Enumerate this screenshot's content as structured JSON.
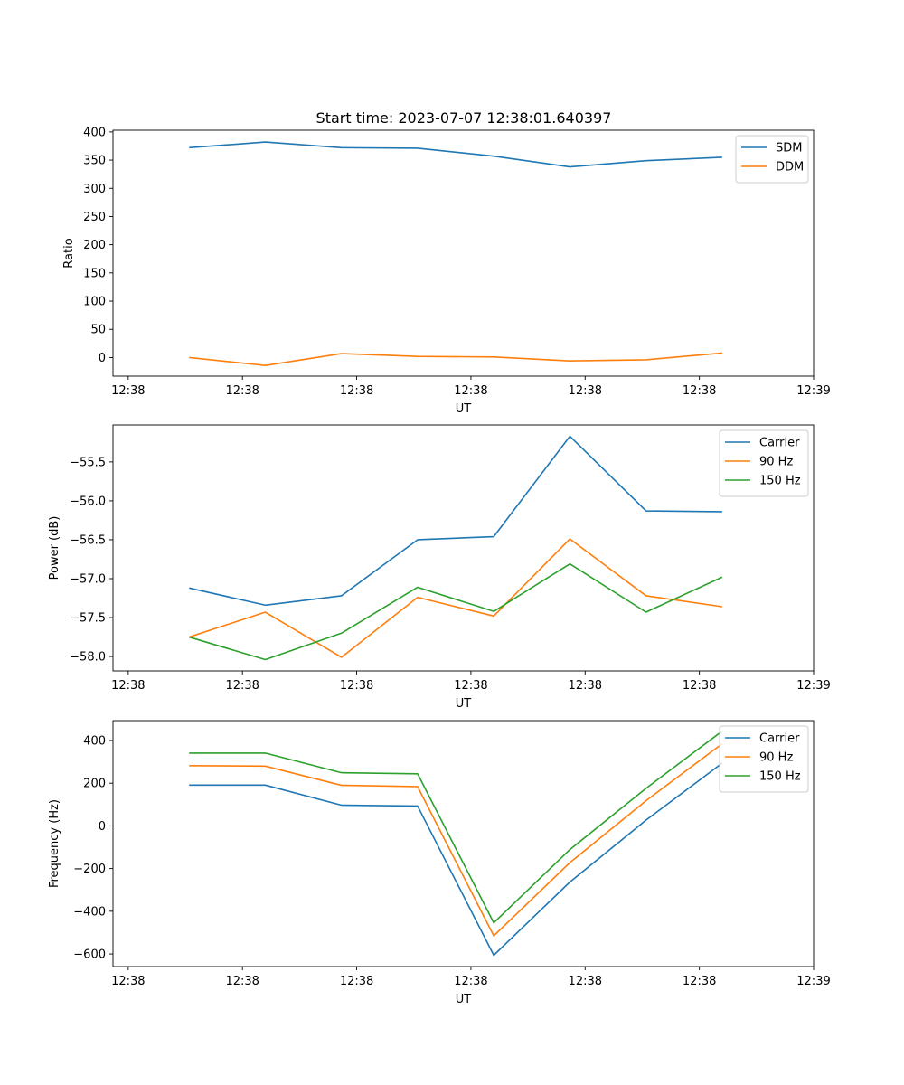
{
  "figure_title": "Start time: 2023-07-07 12:38:01.640397",
  "colors": {
    "blue": "#1f77b4",
    "orange": "#ff7f0e",
    "green": "#2ca02c"
  },
  "chart_data": [
    {
      "type": "line",
      "title": "Start time: 2023-07-07 12:38:01.640397",
      "xlabel": "UT",
      "ylabel": "Ratio",
      "x": [
        1,
        2,
        3,
        4,
        5,
        6,
        7,
        8
      ],
      "xlim": [
        0,
        9.2
      ],
      "xticks": [
        0.2,
        1.7,
        3.2,
        4.7,
        6.2,
        7.7,
        9.2
      ],
      "xtick_labels": [
        "12:38",
        "12:38",
        "12:38",
        "12:38",
        "12:38",
        "12:38",
        "12:39"
      ],
      "ylim": [
        -33,
        403
      ],
      "yticks": [
        0,
        50,
        100,
        150,
        200,
        250,
        300,
        350,
        400
      ],
      "ytick_labels": [
        "0",
        "50",
        "100",
        "150",
        "200",
        "250",
        "300",
        "350",
        "400"
      ],
      "legend_position": "top-right",
      "series": [
        {
          "name": "SDM",
          "color": "#1f77b4",
          "values": [
            372,
            382,
            372,
            371,
            357,
            338,
            349,
            355
          ]
        },
        {
          "name": "DDM",
          "color": "#ff7f0e",
          "values": [
            0,
            -14,
            7,
            2,
            1,
            -6,
            -4,
            8
          ]
        }
      ]
    },
    {
      "type": "line",
      "xlabel": "UT",
      "ylabel": "Power (dB)",
      "x": [
        1,
        2,
        3,
        4,
        5,
        6,
        7,
        8
      ],
      "xlim": [
        0,
        9.2
      ],
      "xticks": [
        0.2,
        1.7,
        3.2,
        4.7,
        6.2,
        7.7,
        9.2
      ],
      "xtick_labels": [
        "12:38",
        "12:38",
        "12:38",
        "12:38",
        "12:38",
        "12:38",
        "12:39"
      ],
      "ylim": [
        -58.185,
        -55.025
      ],
      "yticks": [
        -58.0,
        -57.5,
        -57.0,
        -56.5,
        -56.0,
        -55.5
      ],
      "ytick_labels": [
        "−58.0",
        "−57.5",
        "−57.0",
        "−56.5",
        "−56.0",
        "−55.5"
      ],
      "legend_position": "top-right",
      "series": [
        {
          "name": "Carrier",
          "color": "#1f77b4",
          "values": [
            -57.12,
            -57.34,
            -57.22,
            -56.5,
            -56.46,
            -55.17,
            -56.13,
            -56.14
          ]
        },
        {
          "name": "90 Hz",
          "color": "#ff7f0e",
          "values": [
            -57.75,
            -57.43,
            -58.01,
            -57.24,
            -57.48,
            -56.49,
            -57.22,
            -57.36
          ]
        },
        {
          "name": "150 Hz",
          "color": "#2ca02c",
          "values": [
            -57.75,
            -58.04,
            -57.7,
            -57.11,
            -57.42,
            -56.81,
            -57.43,
            -56.98
          ]
        }
      ]
    },
    {
      "type": "line",
      "xlabel": "UT",
      "ylabel": "Frequency (Hz)",
      "x": [
        1,
        2,
        3,
        4,
        5,
        6,
        7,
        8
      ],
      "xlim": [
        0,
        9.2
      ],
      "xticks": [
        0.2,
        1.7,
        3.2,
        4.7,
        6.2,
        7.7,
        9.2
      ],
      "xtick_labels": [
        "12:38",
        "12:38",
        "12:38",
        "12:38",
        "12:38",
        "12:38",
        "12:39"
      ],
      "ylim": [
        -659,
        493
      ],
      "yticks": [
        -600,
        -400,
        -200,
        0,
        200,
        400
      ],
      "ytick_labels": [
        "−600",
        "−400",
        "−200",
        "0",
        "200",
        "400"
      ],
      "legend_position": "top-right",
      "series": [
        {
          "name": "Carrier",
          "color": "#1f77b4",
          "values": [
            191,
            191,
            97,
            93,
            -606,
            -263,
            27,
            294
          ]
        },
        {
          "name": "90 Hz",
          "color": "#ff7f0e",
          "values": [
            282,
            280,
            190,
            184,
            -515,
            -172,
            118,
            385
          ]
        },
        {
          "name": "150 Hz",
          "color": "#2ca02c",
          "values": [
            341,
            341,
            249,
            244,
            -454,
            -111,
            176,
            444
          ]
        }
      ]
    }
  ]
}
